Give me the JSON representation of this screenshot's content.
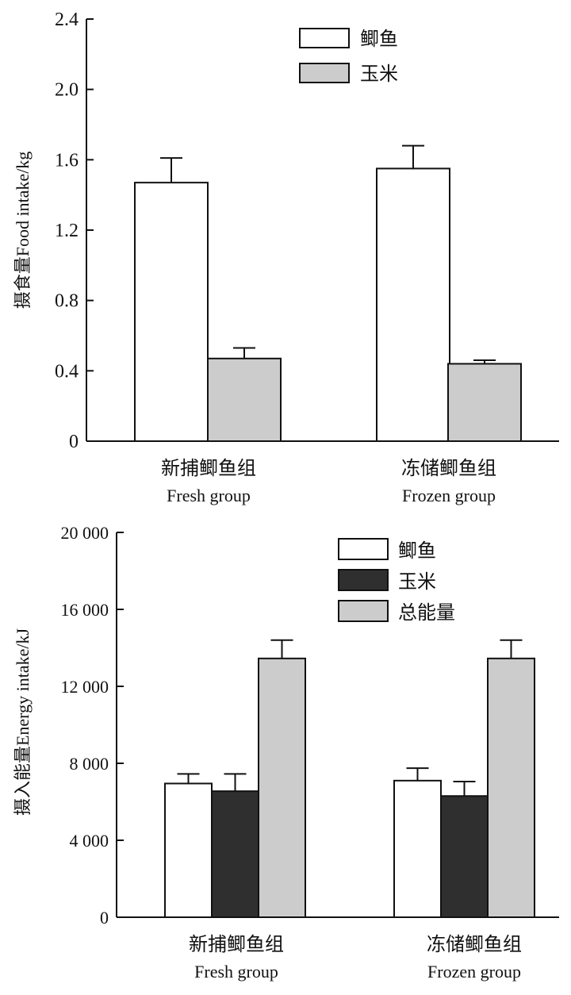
{
  "colors": {
    "white_bar": "#ffffff",
    "gray_bar": "#cccccc",
    "black_bar": "#2f2f2f",
    "stroke": "#111111"
  },
  "chart_data": [
    {
      "type": "bar",
      "ylabel": "摄食量Food intake/kg",
      "ylim": [
        0,
        2.4
      ],
      "yticks": [
        "0",
        "0.4",
        "0.8",
        "1.2",
        "1.6",
        "2.0",
        "2.4"
      ],
      "yticks_values": [
        0,
        0.4,
        0.8,
        1.2,
        1.6,
        2.0,
        2.4
      ],
      "categories": [
        {
          "zh": "新捕鲫鱼组",
          "en": "Fresh group"
        },
        {
          "zh": "冻储鲫鱼组",
          "en": "Frozen group"
        }
      ],
      "legend": {
        "placement": "top-right"
      },
      "series": [
        {
          "name": "鲫鱼",
          "color": "#ffffff",
          "values": [
            1.47,
            1.55
          ],
          "errors": [
            0.14,
            0.13
          ]
        },
        {
          "name": "玉米",
          "color": "#cccccc",
          "values": [
            0.47,
            0.44
          ],
          "errors": [
            0.06,
            0.02
          ]
        }
      ]
    },
    {
      "type": "bar",
      "ylabel": "摄入能量Energy intake/kJ",
      "ylim": [
        0,
        20000
      ],
      "yticks": [
        "0",
        "4 000",
        "8 000",
        "12 000",
        "16 000",
        "20 000"
      ],
      "yticks_values": [
        0,
        4000,
        8000,
        12000,
        16000,
        20000
      ],
      "categories": [
        {
          "zh": "新捕鲫鱼组",
          "en": "Fresh group"
        },
        {
          "zh": "冻储鲫鱼组",
          "en": "Frozen group"
        }
      ],
      "legend": {
        "placement": "top-right"
      },
      "series": [
        {
          "name": "鲫鱼",
          "color": "#ffffff",
          "values": [
            6950,
            7100
          ],
          "errors": [
            500,
            650
          ]
        },
        {
          "name": "玉米",
          "color": "#2f2f2f",
          "values": [
            6550,
            6300
          ],
          "errors": [
            900,
            750
          ]
        },
        {
          "name": "总能量",
          "color": "#cccccc",
          "values": [
            13450,
            13450
          ],
          "errors": [
            950,
            950
          ]
        }
      ]
    }
  ]
}
